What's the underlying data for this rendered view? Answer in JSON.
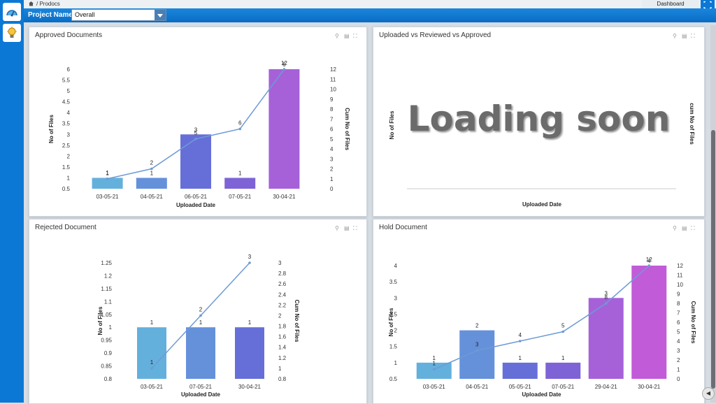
{
  "breadcrumb": {
    "home_icon": "home-icon",
    "text": "/ Prodocs"
  },
  "header": {
    "project_label": "Project Name :",
    "project_value": "Overall",
    "dashboard_tab": "Dashboard"
  },
  "sidebar": {
    "items": [
      {
        "icon": "dashboard-gauge-icon"
      },
      {
        "icon": "lightbulb-icon"
      }
    ]
  },
  "panels": {
    "approved": {
      "title": "Approved Documents"
    },
    "uploaded": {
      "title": "Uploaded vs Reviewed vs Approved",
      "loading_text": "Loading soon",
      "ylabel": "No of Files",
      "y2label": "cum No of Files",
      "xlabel": "Uploaded Date"
    },
    "rejected": {
      "title": "Rejected Document"
    },
    "hold": {
      "title": "Hold Document"
    }
  },
  "colors": {
    "accent": "#0b78d6",
    "line": "#6d9ad6"
  },
  "chart_data": [
    {
      "id": "approved",
      "type": "bar",
      "categories": [
        "03-05-21",
        "04-05-21",
        "06-05-21",
        "07-05-21",
        "30-04-21"
      ],
      "series": [
        {
          "values": [
            1,
            1,
            3,
            1,
            6
          ],
          "bar_labels": [
            "1",
            "1",
            "3",
            "1",
            "6"
          ],
          "colors": [
            "#64b0dd",
            "#6591db",
            "#666fd8",
            "#7e63d6",
            "#a661d8"
          ]
        },
        {
          "type": "line",
          "values": [
            1,
            2,
            5,
            6,
            12
          ],
          "labels": [
            "1",
            "2",
            "5",
            "6",
            "12"
          ]
        }
      ],
      "xlabel": "Uploaded Date",
      "ylabel": "No of Files",
      "y2label": "Cum No of Files",
      "yticks": [
        "0.5",
        "1",
        "1.5",
        "2",
        "2.5",
        "3",
        "3.5",
        "4",
        "4.5",
        "5",
        "5.5",
        "6"
      ],
      "ylim": [
        0.5,
        6
      ],
      "y2ticks": [
        "0",
        "1",
        "2",
        "3",
        "4",
        "5",
        "6",
        "7",
        "8",
        "9",
        "10",
        "11",
        "12"
      ],
      "y2lim": [
        0,
        12
      ]
    },
    {
      "id": "rejected",
      "type": "bar",
      "categories": [
        "03-05-21",
        "07-05-21",
        "30-04-21"
      ],
      "series": [
        {
          "values": [
            1,
            1,
            1
          ],
          "bar_labels": [
            "1",
            "1",
            "1"
          ],
          "colors": [
            "#64b0dd",
            "#6591db",
            "#666fd8"
          ]
        },
        {
          "type": "line",
          "values": [
            1,
            2,
            3
          ],
          "labels": [
            "1",
            "2",
            "3"
          ]
        }
      ],
      "xlabel": "Uploaded Date",
      "ylabel": "No of Files",
      "y2label": "Cum No of Files",
      "yticks": [
        "0.8",
        "0.85",
        "0.9",
        "0.95",
        "1",
        "1.05",
        "1.1",
        "1.15",
        "1.2",
        "1.25"
      ],
      "ylim": [
        0.8,
        1.25
      ],
      "y2ticks": [
        "0.8",
        "1",
        "1.2",
        "1.4",
        "1.6",
        "1.8",
        "2",
        "2.2",
        "2.4",
        "2.6",
        "2.8",
        "3"
      ],
      "y2lim": [
        0.8,
        3
      ]
    },
    {
      "id": "hold",
      "type": "bar",
      "categories": [
        "03-05-21",
        "04-05-21",
        "05-05-21",
        "07-05-21",
        "29-04-21",
        "30-04-21"
      ],
      "series": [
        {
          "values": [
            1,
            2,
            1,
            1,
            3,
            4
          ],
          "bar_labels": [
            "1",
            "2",
            "1",
            "1",
            "3",
            "4"
          ],
          "colors": [
            "#64b0dd",
            "#6591db",
            "#666fd8",
            "#7e63d6",
            "#a661d8",
            "#c25bd8"
          ]
        },
        {
          "type": "line",
          "values": [
            1,
            3,
            4,
            5,
            8,
            12
          ],
          "labels": [
            "1",
            "3",
            "4",
            "5",
            "8",
            "12"
          ]
        }
      ],
      "xlabel": "Uploaded Date",
      "ylabel": "No of Files",
      "y2label": "Cum No of Files",
      "yticks": [
        "0.5",
        "1",
        "1.5",
        "2",
        "2.5",
        "3",
        "3.5",
        "4"
      ],
      "ylim": [
        0.5,
        4
      ],
      "y2ticks": [
        "0",
        "1",
        "2",
        "3",
        "4",
        "5",
        "6",
        "7",
        "8",
        "9",
        "10",
        "11",
        "12"
      ],
      "y2lim": [
        0,
        12
      ]
    }
  ]
}
